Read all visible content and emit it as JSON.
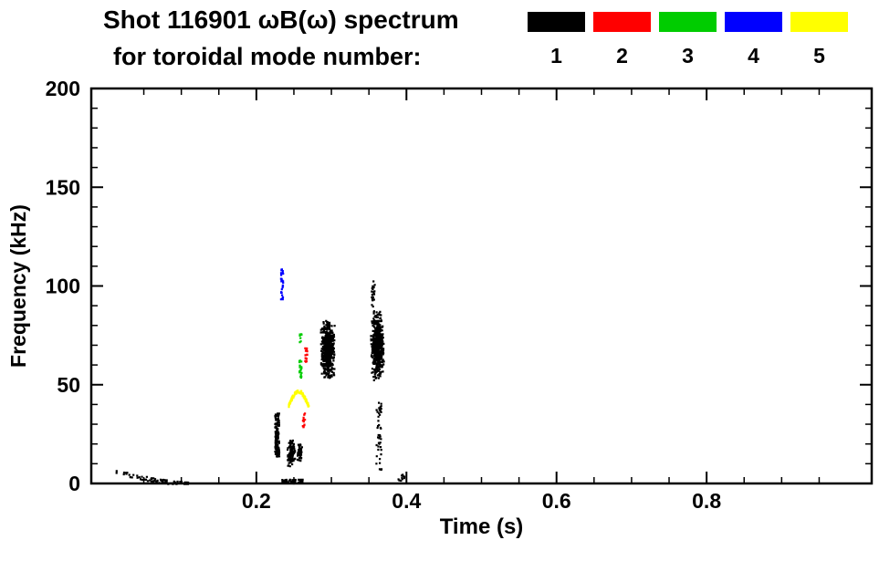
{
  "header": {
    "title_line1": "Shot 116901 ωB(ω) spectrum",
    "title_line2": "for toroidal mode number:"
  },
  "chart_data": {
    "type": "scatter",
    "title": "Shot 116901 ωB(ω) spectrum for toroidal mode number: 1 2 3 4 5",
    "xlabel": "Time (s)",
    "ylabel": "Frequency (kHz)",
    "xlim": [
      -0.02,
      1.02
    ],
    "ylim": [
      0,
      200
    ],
    "grid": false,
    "legend_position": "top-right",
    "xticks": [
      {
        "value": 0.2,
        "label": "0.2"
      },
      {
        "value": 0.4,
        "label": "0.4"
      },
      {
        "value": 0.6,
        "label": "0.6"
      },
      {
        "value": 0.8,
        "label": "0.8"
      }
    ],
    "yticks": [
      {
        "value": 0,
        "label": "0"
      },
      {
        "value": 50,
        "label": "50"
      },
      {
        "value": 100,
        "label": "100"
      },
      {
        "value": 150,
        "label": "150"
      },
      {
        "value": 200,
        "label": "200"
      }
    ],
    "x_minor_step": 0.05,
    "y_minor_step": 10,
    "modes": [
      {
        "label": "1",
        "color": "#000000"
      },
      {
        "label": "2",
        "color": "#ff0000"
      },
      {
        "label": "3",
        "color": "#00cc00"
      },
      {
        "label": "4",
        "color": "#0000ff"
      },
      {
        "label": "5",
        "color": "#ffff00"
      }
    ],
    "clusters": [
      {
        "mode": 1,
        "type": "trail",
        "t0": 0.012,
        "t1": 0.108,
        "f0": 6.5,
        "f1": 0.3,
        "count": 80
      },
      {
        "mode": 1,
        "type": "vband",
        "t": 0.2265,
        "dt": 0.0028,
        "f0": 14,
        "f1": 36,
        "count": 130
      },
      {
        "mode": 1,
        "type": "blob",
        "t0": 0.24,
        "t1": 0.2505,
        "f0": 8,
        "f1": 24,
        "count": 110
      },
      {
        "mode": 1,
        "type": "blob",
        "t0": 0.2525,
        "t1": 0.26,
        "f0": 11,
        "f1": 21,
        "count": 50
      },
      {
        "mode": 1,
        "type": "hband",
        "t0": 0.233,
        "t1": 0.261,
        "f0": 0.5,
        "f1": 2.5,
        "count": 45
      },
      {
        "mode": 1,
        "type": "blob",
        "t0": 0.284,
        "t1": 0.3035,
        "f0": 53,
        "f1": 84,
        "count": 520
      },
      {
        "mode": 1,
        "type": "blob",
        "t0": 0.351,
        "t1": 0.369,
        "f0": 52,
        "f1": 88,
        "count": 500
      },
      {
        "mode": 1,
        "type": "vband",
        "t": 0.3545,
        "dt": 0.002,
        "f0": 90,
        "f1": 104,
        "count": 24
      },
      {
        "mode": 1,
        "type": "vband",
        "t": 0.362,
        "dt": 0.0035,
        "f0": 7,
        "f1": 42,
        "count": 46
      },
      {
        "mode": 1,
        "type": "dots",
        "t0": 0.388,
        "t1": 0.397,
        "f0": 0.5,
        "f1": 6,
        "count": 10
      },
      {
        "mode": 4,
        "type": "vband",
        "t": 0.233,
        "dt": 0.0015,
        "f0": 93,
        "f1": 109,
        "count": 28
      },
      {
        "mode": 3,
        "type": "vband",
        "t": 0.2575,
        "dt": 0.0015,
        "f0": 54,
        "f1": 63,
        "count": 18
      },
      {
        "mode": 3,
        "type": "dots",
        "t0": 0.256,
        "t1": 0.259,
        "f0": 72,
        "f1": 77,
        "count": 8
      },
      {
        "mode": 2,
        "type": "vband",
        "t": 0.265,
        "dt": 0.0015,
        "f0": 62,
        "f1": 70,
        "count": 15
      },
      {
        "mode": 2,
        "type": "vband",
        "t": 0.262,
        "dt": 0.0015,
        "f0": 29,
        "f1": 36,
        "count": 13
      },
      {
        "mode": 5,
        "type": "arc",
        "t0": 0.2415,
        "t1": 0.2685,
        "f_base": 39.5,
        "f_peak": 47,
        "count": 110
      }
    ]
  }
}
